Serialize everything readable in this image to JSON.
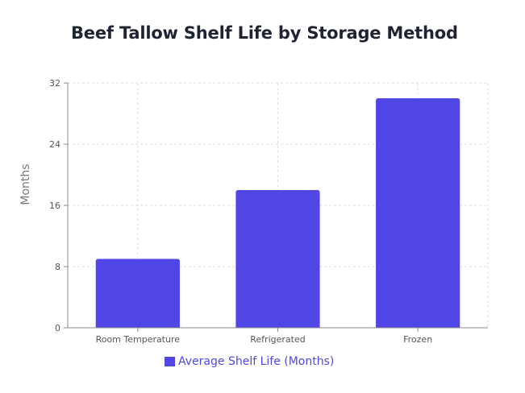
{
  "chart_data": {
    "type": "bar",
    "title": "Beef Tallow Shelf Life by Storage Method",
    "ylabel": "Months",
    "xlabel": "",
    "categories": [
      "Room Temperature",
      "Refrigerated",
      "Frozen"
    ],
    "series": [
      {
        "name": "Average Shelf Life (Months)",
        "values": [
          9,
          18,
          30
        ],
        "color": "#4f46e5"
      }
    ],
    "ylim": [
      0,
      32
    ],
    "yticks": [
      "0",
      "8",
      "16",
      "24",
      "32"
    ],
    "grid": true,
    "legend_position": "bottom",
    "legend_text_color": "#4f46e5",
    "grid_color": "#dddddd",
    "axis_color": "#888888"
  }
}
